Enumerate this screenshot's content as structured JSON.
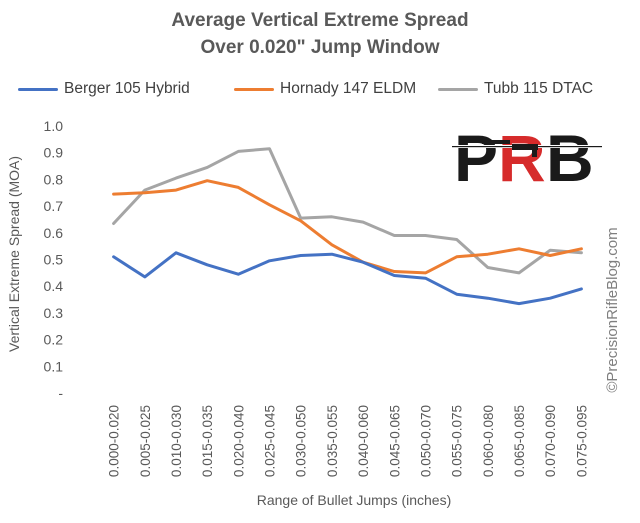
{
  "chart_data": {
    "type": "line",
    "title_line1": "Average Vertical Extreme Spread",
    "title_line2": "Over 0.020\"  Jump Window",
    "xlabel": "Range of Bullet Jumps (inches)",
    "ylabel": "Vertical Extreme Spread (MOA)",
    "categories": [
      "0.000-0.020",
      "0.005-0.025",
      "0.010-0.030",
      "0.015-0.035",
      "0.020-0.040",
      "0.025-0.045",
      "0.030-0.050",
      "0.035-0.055",
      "0.040-0.060",
      "0.045-0.065",
      "0.050-0.070",
      "0.055-0.075",
      "0.060-0.080",
      "0.065-0.085",
      "0.070-0.090",
      "0.075-0.095"
    ],
    "ylim": [
      0,
      1.0
    ],
    "yticks": [
      "-",
      "0.1",
      "0.2",
      "0.3",
      "0.4",
      "0.5",
      "0.6",
      "0.7",
      "0.8",
      "0.9",
      "1.0"
    ],
    "grid": false,
    "legend_position": "top",
    "series": [
      {
        "name": "Berger 105 Hybrid",
        "color": "#4472C4",
        "values": [
          0.51,
          0.435,
          0.525,
          0.48,
          0.445,
          0.495,
          0.515,
          0.52,
          0.49,
          0.44,
          0.43,
          0.37,
          0.355,
          0.335,
          0.355,
          0.39
        ]
      },
      {
        "name": "Hornady 147 ELDM",
        "color": "#ED7D31",
        "values": [
          0.745,
          0.75,
          0.76,
          0.795,
          0.77,
          0.705,
          0.645,
          0.555,
          0.49,
          0.455,
          0.45,
          0.51,
          0.52,
          0.54,
          0.515,
          0.54
        ]
      },
      {
        "name": "Tubb 115 DTAC",
        "color": "#A5A5A5",
        "values": [
          0.635,
          0.76,
          0.805,
          0.845,
          0.905,
          0.915,
          0.655,
          0.66,
          0.64,
          0.59,
          0.59,
          0.575,
          0.47,
          0.45,
          0.535,
          0.525
        ]
      }
    ]
  },
  "watermark": "©PrecisionRifleBlog.com",
  "logo": {
    "text_p": "P",
    "text_r": "R",
    "text_b": "B",
    "black": "#1a1a1a",
    "red": "#d62b2b"
  }
}
